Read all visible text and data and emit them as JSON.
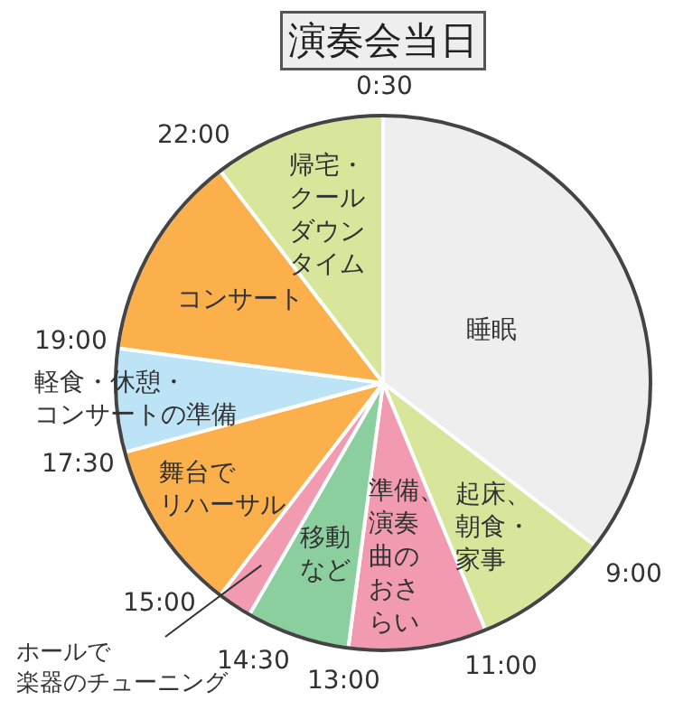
{
  "chart_data": {
    "type": "pie",
    "title": "演奏会当日",
    "categories": [
      "睡眠",
      "起床、朝食・家事",
      "準備、演奏曲のおさらい",
      "移動など",
      "ホールで楽器のチューニング",
      "舞台でリハーサル",
      "軽食・休憩・コンサートの準備",
      "コンサート",
      "帰宅・クールダウンタイム"
    ],
    "values": [
      35.42,
      8.33,
      8.33,
      6.25,
      2.08,
      10.42,
      6.25,
      12.5,
      10.42
    ],
    "colors": [
      "#eeeeee",
      "#d8e69c",
      "#f29bb0",
      "#8ccf9f",
      "#f29bb0",
      "#fbb04c",
      "#bde3f7",
      "#fbb04c",
      "#d8e69c"
    ],
    "annotations": [
      "0:30",
      "9:00",
      "11:00",
      "13:00",
      "14:30",
      "15:00",
      "17:30",
      "19:00",
      "22:00"
    ]
  }
}
